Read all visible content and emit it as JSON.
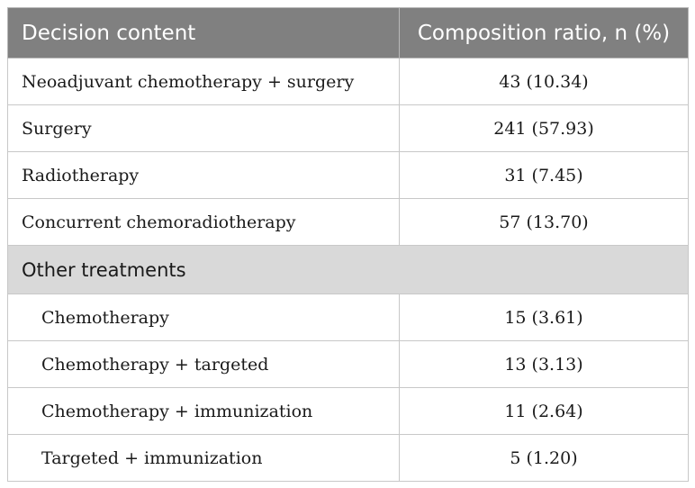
{
  "table": {
    "header": {
      "col1": "Decision content",
      "col2": "Composition ratio, n (%)"
    },
    "rows": [
      {
        "name": "Neoadjuvant chemotherapy + surgery",
        "value": "43 (10.34)"
      },
      {
        "name": "Surgery",
        "value": "241 (57.93)"
      },
      {
        "name": "Radiotherapy",
        "value": "31 (7.45)"
      },
      {
        "name": "Concurrent chemoradiotherapy",
        "value": "57 (13.70)"
      }
    ],
    "section": {
      "title": "Other treatments",
      "rows": [
        {
          "name": "Chemotherapy",
          "value": "15 (3.61)"
        },
        {
          "name": "Chemotherapy + targeted",
          "value": "13 (3.13)"
        },
        {
          "name": "Chemotherapy + immunization",
          "value": "11 (2.64)"
        },
        {
          "name": "Targeted + immunization",
          "value": "5 (1.20)"
        }
      ]
    },
    "colors": {
      "header_bg": "#808080",
      "section_bg": "#d9d9d9",
      "border": "#c8c8c8"
    }
  }
}
